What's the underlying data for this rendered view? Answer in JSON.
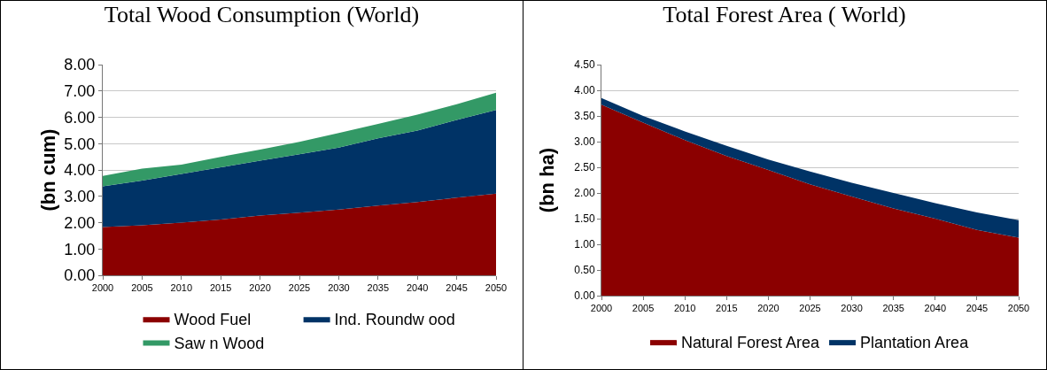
{
  "chart_data": [
    {
      "type": "area",
      "title": "Total Wood Consumption (World)",
      "ylabel": "(bn cum)",
      "stacked": true,
      "x": [
        2000,
        2005,
        2010,
        2015,
        2020,
        2025,
        2030,
        2035,
        2040,
        2045,
        2050
      ],
      "series": [
        {
          "name": "Wood Fuel",
          "color": "#8b0000",
          "values": [
            1.83,
            1.9,
            2.0,
            2.12,
            2.27,
            2.38,
            2.5,
            2.65,
            2.78,
            2.95,
            3.1
          ]
        },
        {
          "name": "Ind. Roundw ood",
          "color": "#003366",
          "values": [
            1.55,
            1.7,
            1.85,
            1.98,
            2.08,
            2.22,
            2.35,
            2.55,
            2.72,
            2.95,
            3.18
          ]
        },
        {
          "name": "Saw n Wood",
          "color": "#339966",
          "values": [
            0.39,
            0.45,
            0.35,
            0.4,
            0.42,
            0.47,
            0.55,
            0.55,
            0.6,
            0.6,
            0.65
          ]
        }
      ],
      "xlim": [
        2000,
        2050
      ],
      "xticks": [
        2000,
        2005,
        2010,
        2015,
        2020,
        2025,
        2030,
        2035,
        2040,
        2045,
        2050
      ],
      "ylim": [
        0,
        8
      ],
      "yticks": [
        {
          "value": 0,
          "label": "0.00"
        },
        {
          "value": 1,
          "label": "1.00"
        },
        {
          "value": 2,
          "label": "2.00"
        },
        {
          "value": 3,
          "label": "3.00"
        },
        {
          "value": 4,
          "label": "4.00"
        },
        {
          "value": 5,
          "label": "5.00"
        },
        {
          "value": 6,
          "label": "6.00"
        },
        {
          "value": 7,
          "label": "7.00"
        },
        {
          "value": 8,
          "label": "8.00"
        }
      ],
      "grid": "y",
      "legend": "bottom"
    },
    {
      "type": "area",
      "title": "Total Forest Area ( World)",
      "ylabel": "(bn ha)",
      "stacked": true,
      "x": [
        2000,
        2005,
        2010,
        2015,
        2020,
        2025,
        2030,
        2035,
        2040,
        2045,
        2050
      ],
      "series": [
        {
          "name": "Natural Forest Area",
          "color": "#8b0000",
          "values": [
            3.72,
            3.37,
            3.03,
            2.72,
            2.45,
            2.17,
            1.93,
            1.7,
            1.5,
            1.28,
            1.13
          ]
        },
        {
          "name": "Plantation Area",
          "color": "#003366",
          "values": [
            0.13,
            0.13,
            0.17,
            0.2,
            0.2,
            0.25,
            0.27,
            0.3,
            0.3,
            0.34,
            0.34
          ]
        }
      ],
      "xlim": [
        2000,
        2050
      ],
      "xticks": [
        2000,
        2005,
        2010,
        2015,
        2020,
        2025,
        2030,
        2035,
        2040,
        2045,
        2050
      ],
      "ylim": [
        0,
        4.5
      ],
      "yticks": [
        {
          "value": 0,
          "label": "0.00"
        },
        {
          "value": 0.5,
          "label": "0.50"
        },
        {
          "value": 1,
          "label": "1.00"
        },
        {
          "value": 1.5,
          "label": "1.50"
        },
        {
          "value": 2,
          "label": "2.00"
        },
        {
          "value": 2.5,
          "label": "2.50"
        },
        {
          "value": 3,
          "label": "3.00"
        },
        {
          "value": 3.5,
          "label": "3.50"
        },
        {
          "value": 4,
          "label": "4.00"
        },
        {
          "value": 4.5,
          "label": "4.50"
        }
      ],
      "grid": "y",
      "legend": "bottom"
    }
  ]
}
